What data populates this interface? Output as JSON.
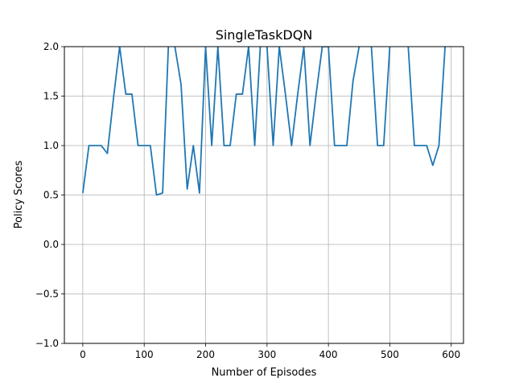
{
  "chart_data": {
    "type": "line",
    "title": "SingleTaskDQN",
    "xlabel": "Number of Episodes",
    "ylabel": "Policy Scores",
    "xlim": [
      -30,
      620
    ],
    "ylim": [
      -1.0,
      2.0
    ],
    "x_ticks": [
      0,
      100,
      200,
      300,
      400,
      500,
      600
    ],
    "y_ticks": [
      -1.0,
      -0.5,
      0.0,
      0.5,
      1.0,
      1.5,
      2.0
    ],
    "x_tick_labels": [
      "0",
      "100",
      "200",
      "300",
      "400",
      "500",
      "600"
    ],
    "y_tick_labels": [
      "−1.0",
      "−0.5",
      "0.0",
      "0.5",
      "1.0",
      "1.5",
      "2.0"
    ],
    "grid": true,
    "line_color": "#1f77b4",
    "series": [
      {
        "x": [
          0,
          10,
          20,
          30,
          40,
          50,
          60,
          70,
          80,
          90,
          100,
          110,
          120,
          130,
          140,
          150,
          160,
          170,
          180,
          190,
          200,
          210,
          220,
          230,
          240,
          250,
          260,
          270,
          280,
          290,
          300,
          310,
          320,
          330,
          340,
          350,
          360,
          370,
          380,
          390,
          400,
          410,
          420,
          430,
          440,
          450,
          460,
          470,
          480,
          490,
          500,
          510,
          520,
          530,
          540,
          550,
          560,
          570,
          580,
          590
        ],
        "values": [
          0.52,
          1.0,
          1.0,
          1.0,
          0.92,
          1.48,
          2.0,
          1.52,
          1.52,
          1.0,
          1.0,
          1.0,
          0.5,
          0.52,
          2.1,
          2.0,
          1.62,
          0.56,
          1.0,
          0.52,
          2.0,
          1.0,
          2.0,
          1.0,
          1.0,
          1.52,
          1.52,
          2.0,
          1.0,
          2.1,
          2.0,
          1.0,
          2.0,
          1.52,
          1.0,
          1.52,
          2.0,
          1.0,
          1.52,
          2.0,
          2.0,
          1.0,
          1.0,
          1.0,
          1.65,
          2.0,
          2.1,
          2.0,
          1.0,
          1.0,
          2.0,
          2.1,
          2.1,
          2.0,
          1.0,
          1.0,
          1.0,
          0.8,
          1.0,
          2.0
        ]
      }
    ]
  }
}
